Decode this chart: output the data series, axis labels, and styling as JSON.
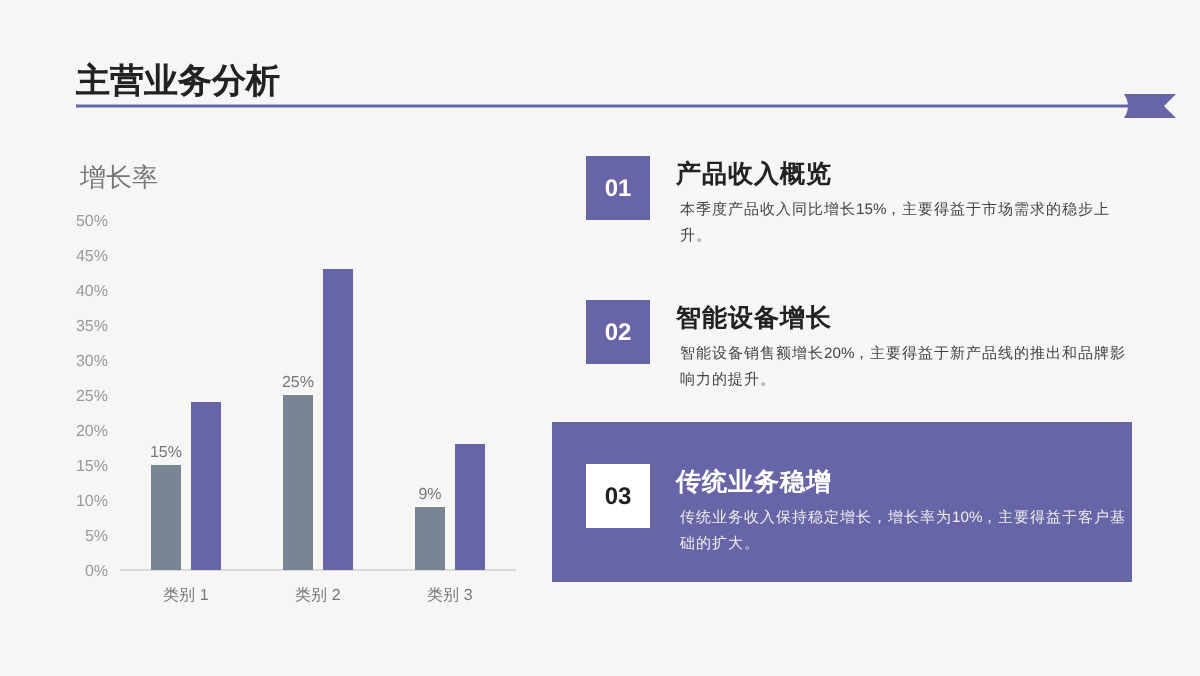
{
  "chart_data": [
    {
      "type": "bar",
      "title": "主营业务分析",
      "ylabel": "增长率",
      "categories": [
        "类别 1",
        "类别 2",
        "类别 3"
      ],
      "series": [
        {
          "color": "#7a8594",
          "values": [
            15,
            25,
            9
          ],
          "value_labels": [
            "15%",
            "25%",
            "9%"
          ]
        },
        {
          "color": "#6764a8",
          "values": [
            24,
            43,
            18
          ]
        }
      ],
      "ylim": [
        0,
        50
      ],
      "yticks": [
        {
          "value": 0,
          "label": "0%"
        },
        {
          "value": 5,
          "label": "5%"
        },
        {
          "value": 10,
          "label": "10%"
        },
        {
          "value": 15,
          "label": "15%"
        },
        {
          "value": 20,
          "label": "20%"
        },
        {
          "value": 25,
          "label": "25%"
        },
        {
          "value": 30,
          "label": "30%"
        },
        {
          "value": 35,
          "label": "35%"
        },
        {
          "value": 40,
          "label": "40%"
        },
        {
          "value": 45,
          "label": "45%"
        },
        {
          "value": 50,
          "label": "50%"
        }
      ],
      "grid": false
    },
    {
      "type": "other",
      "annotations": [
        "01",
        "产品收入概览",
        "本季度产品收入同比增长15%，主要得益于市场需求的稳步上升。",
        "02",
        "智能设备增长",
        "智能设备销售额增长20%，主要得益于新产品线的推出和品牌影响力的提升。",
        "03",
        "传统业务稳增",
        "传统业务收入保持稳定增长，增长率为10%，主要得益于客户基础的扩大。"
      ]
    }
  ]
}
